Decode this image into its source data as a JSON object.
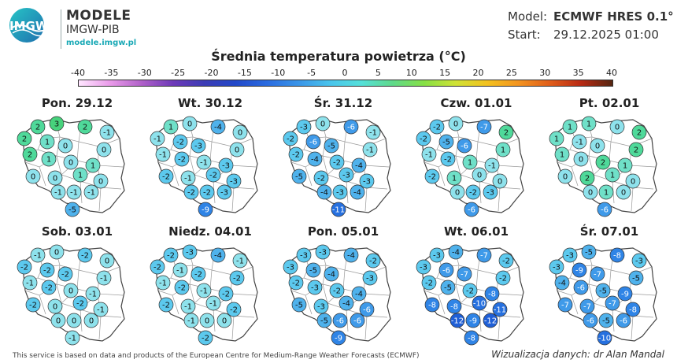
{
  "brand": {
    "logo_text": "IMGW",
    "title": "MODELE",
    "subtitle": "IMGW-PIB",
    "url": "modele.imgw.pl"
  },
  "meta": {
    "model_label": "Model:",
    "model_value": "ECMWF HRES 0.1°",
    "start_label": "Start:",
    "start_value": "29.12.2025 01:00"
  },
  "title": "Średnia temperatura powietrza (°C)",
  "scale": {
    "ticks": [
      "-40",
      "-35",
      "-30",
      "-25",
      "-20",
      "-15",
      "-10",
      "-5",
      "0",
      "5",
      "10",
      "15",
      "20",
      "25",
      "30",
      "35",
      "40"
    ],
    "colors": [
      "#ffe6ff",
      "#e99ae9",
      "#b061c9",
      "#6e3ab8",
      "#3c3cb5",
      "#2249c9",
      "#2a6be0",
      "#3a95e8",
      "#49c4ec",
      "#55e0d9",
      "#5fd98a",
      "#86e045",
      "#cfe236",
      "#f3c21f",
      "#f39420",
      "#e05e1a",
      "#b82a14",
      "#552611"
    ]
  },
  "maps": [
    {
      "day": "Pon. 29.12",
      "values": [
        2,
        3,
        2,
        -1,
        2,
        1,
        0,
        0,
        2,
        1,
        0,
        1,
        0,
        0,
        1,
        0,
        -1,
        -1,
        -1,
        -5
      ]
    },
    {
      "day": "Wt. 30.12",
      "values": [
        1,
        0,
        -4,
        0,
        -1,
        -2,
        -3,
        0,
        -1,
        -2,
        -1,
        -3,
        -2,
        -1,
        -2,
        -3,
        -2,
        -2,
        -3,
        -9
      ]
    },
    {
      "day": "Śr. 31.12",
      "values": [
        -3,
        0,
        -6,
        -1,
        -2,
        -6,
        -5,
        -1,
        -2,
        -4,
        -2,
        -4,
        -5,
        -2,
        -3,
        -3,
        -4,
        -3,
        -4,
        -11
      ]
    },
    {
      "day": "Czw. 01.01",
      "values": [
        -2,
        0,
        -7,
        2,
        -2,
        -5,
        -6,
        1,
        -1,
        -2,
        1,
        -1,
        -2,
        1,
        0,
        0,
        0,
        -2,
        -3,
        -6
      ]
    },
    {
      "day": "Pt. 02.01",
      "values": [
        1,
        1,
        0,
        2,
        1,
        -1,
        0,
        2,
        1,
        0,
        2,
        1,
        0,
        2,
        1,
        0,
        0,
        1,
        0,
        -6
      ]
    },
    {
      "day": "Sob. 03.01",
      "values": [
        -1,
        0,
        -2,
        0,
        -2,
        -2,
        -2,
        -1,
        -1,
        -2,
        0,
        -1,
        -2,
        0,
        -2,
        -1,
        0,
        0,
        0,
        -1
      ]
    },
    {
      "day": "Niedz. 04.01",
      "values": [
        -2,
        -3,
        -4,
        -1,
        -2,
        -1,
        -2,
        -2,
        -1,
        -2,
        -1,
        -2,
        -2,
        -1,
        -1,
        -2,
        -1,
        0,
        0,
        -2
      ]
    },
    {
      "day": "Pon. 05.01",
      "values": [
        -3,
        -3,
        -4,
        -2,
        -3,
        -5,
        -4,
        -3,
        -2,
        -3,
        -2,
        -4,
        -5,
        -3,
        -4,
        -6,
        -5,
        -6,
        -6,
        -9
      ]
    },
    {
      "day": "Wt. 06.01",
      "values": [
        -3,
        -4,
        -7,
        -2,
        -3,
        -6,
        -7,
        -2,
        -2,
        -5,
        -2,
        -8,
        -8,
        -8,
        -10,
        -11,
        -12,
        -9,
        -12,
        -8
      ]
    },
    {
      "day": "Śr. 07.01",
      "values": [
        -3,
        -5,
        -8,
        -3,
        -3,
        -9,
        -7,
        -5,
        -4,
        -6,
        -5,
        -9,
        -7,
        -7,
        -7,
        -8,
        -6,
        -5,
        -6,
        -10
      ]
    }
  ],
  "footer": {
    "left": "This service is based on data and products of the European Centre for Medium-Range Weather Forecasts (ECMWF)",
    "right": "Wizualizacja danych: dr Alan Mandal"
  }
}
